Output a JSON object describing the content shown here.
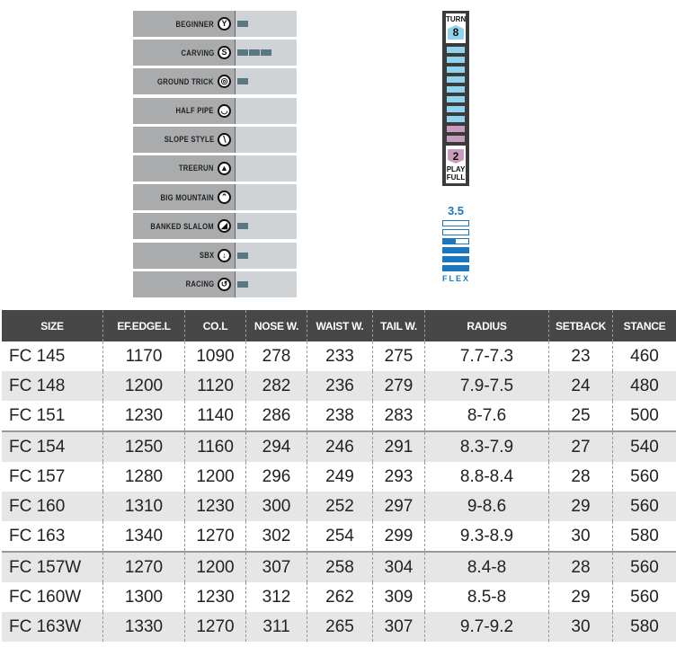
{
  "terrain": [
    {
      "label": "BEGINNER",
      "icon": "beginner-icon",
      "glyph": "Y",
      "level": 1
    },
    {
      "label": "CARVING",
      "icon": "carving-icon",
      "glyph": "S",
      "level": 3
    },
    {
      "label": "GROUND TRICK",
      "icon": "ground-trick-icon",
      "glyph": "◎",
      "level": 1
    },
    {
      "label": "HALF PIPE",
      "icon": "half-pipe-icon",
      "glyph": "◡",
      "level": 0
    },
    {
      "label": "SLOPE STYLE",
      "icon": "slope-style-icon",
      "glyph": "∖",
      "level": 0
    },
    {
      "label": "TREERUN",
      "icon": "tree-icon",
      "glyph": "▲",
      "level": 0
    },
    {
      "label": "BIG MOUNTAIN",
      "icon": "mountain-icon",
      "glyph": "⌃",
      "level": 0
    },
    {
      "label": "BANKED SLALOM",
      "icon": "banked-slalom-icon",
      "glyph": "◢",
      "level": 1
    },
    {
      "label": "SBX",
      "icon": "sbx-icon",
      "glyph": "↓",
      "level": 1
    },
    {
      "label": "RACING",
      "icon": "racing-icon",
      "glyph": "↺",
      "level": 1
    }
  ],
  "meter": {
    "turn_label": "TURN",
    "turn_value": "8",
    "play_label_1": "PLAY",
    "play_label_2": "FULL",
    "play_value": "2",
    "turn_color": "#8fd3ee",
    "play_color": "#c99bbd",
    "flex_value": "3.5",
    "flex_label": "FLEX",
    "flex_level": 3.5,
    "flex_max": 6,
    "flex_color": "#1a78c2"
  },
  "table": {
    "headers": [
      "SIZE",
      "EF.EDGE.L",
      "CO.L",
      "NOSE W.",
      "WAIST W.",
      "TAIL W.",
      "RADIUS",
      "SETBACK",
      "STANCE"
    ],
    "rows": [
      [
        "FC 145",
        "1170",
        "1090",
        "278",
        "233",
        "275",
        "7.7-7.3",
        "23",
        "460"
      ],
      [
        "FC 148",
        "1200",
        "1120",
        "282",
        "236",
        "279",
        "7.9-7.5",
        "24",
        "480"
      ],
      [
        "FC 151",
        "1230",
        "1140",
        "286",
        "238",
        "283",
        "8-7.6",
        "25",
        "500"
      ],
      [
        "FC 154",
        "1250",
        "1160",
        "294",
        "246",
        "291",
        "8.3-7.9",
        "27",
        "540"
      ],
      [
        "FC 157",
        "1280",
        "1200",
        "296",
        "249",
        "293",
        "8.8-8.4",
        "28",
        "560"
      ],
      [
        "FC 160",
        "1310",
        "1230",
        "300",
        "252",
        "297",
        "9-8.6",
        "29",
        "560"
      ],
      [
        "FC 163",
        "1340",
        "1270",
        "302",
        "254",
        "299",
        "9.3-8.9",
        "30",
        "580"
      ],
      [
        "FC 157W",
        "1270",
        "1200",
        "307",
        "258",
        "304",
        "8.4-8",
        "28",
        "560"
      ],
      [
        "FC 160W",
        "1300",
        "1230",
        "312",
        "262",
        "309",
        "8.5-8",
        "29",
        "560"
      ],
      [
        "FC 163W",
        "1330",
        "1270",
        "311",
        "265",
        "307",
        "9.7-9.2",
        "30",
        "580"
      ]
    ]
  }
}
